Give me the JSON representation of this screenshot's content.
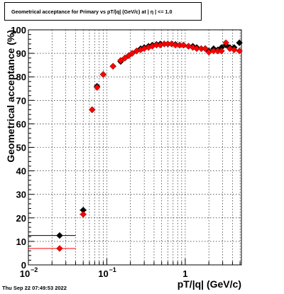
{
  "title": "Geometrical acceptance for Primary vs pT/|q| (GeV/c) at |  η | <= 1.0",
  "timestamp": "Thu Sep 22 07:49:53 2022",
  "chart_data": {
    "type": "scatter",
    "title": "Geometrical acceptance for Primary vs pT/|q| (GeV/c) at |  η | <= 1.0",
    "xlabel": "pT/|q| (GeV/c)",
    "ylabel": "Geometrical acceptance (%)",
    "xscale": "log",
    "xlim": [
      0.01,
      5.2
    ],
    "ylim": [
      0,
      100
    ],
    "grid": true,
    "x_ticks": [
      {
        "value": 0.01,
        "base": "10",
        "exp": "−2"
      },
      {
        "value": 0.1,
        "base": "10",
        "exp": "−1"
      },
      {
        "value": 1,
        "base": "1",
        "exp": ""
      }
    ],
    "y_ticks": [
      0,
      10,
      20,
      30,
      40,
      50,
      60,
      70,
      80,
      90,
      100
    ],
    "series": [
      {
        "marker": "diamond",
        "color": "#000000",
        "points": [
          {
            "x": 0.025,
            "y": 12.5,
            "xlo": 0.01,
            "xhi": 0.04
          },
          {
            "x": 0.05,
            "y": 23.3,
            "xlo": 0.045,
            "xhi": 0.055
          },
          {
            "x": 0.065,
            "y": 66,
            "xlo": 0.062,
            "xhi": 0.068
          },
          {
            "x": 0.075,
            "y": 76,
            "xlo": 0.072,
            "xhi": 0.078
          },
          {
            "x": 0.09,
            "y": 81,
            "xlo": 0.085,
            "xhi": 0.095
          },
          {
            "x": 0.12,
            "y": 84.5,
            "xlo": 0.115,
            "xhi": 0.125
          },
          {
            "x": 0.15,
            "y": 86.5
          },
          {
            "x": 0.17,
            "y": 88
          },
          {
            "x": 0.19,
            "y": 89
          },
          {
            "x": 0.21,
            "y": 90
          },
          {
            "x": 0.24,
            "y": 91
          },
          {
            "x": 0.27,
            "y": 92
          },
          {
            "x": 0.3,
            "y": 92.5
          },
          {
            "x": 0.34,
            "y": 93
          },
          {
            "x": 0.38,
            "y": 93.5
          },
          {
            "x": 0.43,
            "y": 93.8
          },
          {
            "x": 0.48,
            "y": 94
          },
          {
            "x": 0.54,
            "y": 94
          },
          {
            "x": 0.6,
            "y": 94
          },
          {
            "x": 0.67,
            "y": 94
          },
          {
            "x": 0.75,
            "y": 93.8
          },
          {
            "x": 0.85,
            "y": 93.5
          },
          {
            "x": 0.95,
            "y": 93.5
          },
          {
            "x": 1.1,
            "y": 93
          },
          {
            "x": 1.25,
            "y": 93
          },
          {
            "x": 1.4,
            "y": 92.5
          },
          {
            "x": 1.6,
            "y": 92
          },
          {
            "x": 1.8,
            "y": 92
          },
          {
            "x": 2.0,
            "y": 91
          },
          {
            "x": 2.3,
            "y": 92
          },
          {
            "x": 2.6,
            "y": 91.5
          },
          {
            "x": 2.9,
            "y": 92.5
          },
          {
            "x": 3.3,
            "y": 93.5
          },
          {
            "x": 3.7,
            "y": 92.5
          },
          {
            "x": 4.2,
            "y": 92.5
          },
          {
            "x": 4.9,
            "y": 94.5
          }
        ]
      },
      {
        "marker": "diamond",
        "color": "#ff0000",
        "points": [
          {
            "x": 0.025,
            "y": 7,
            "xlo": 0.01,
            "xhi": 0.04
          },
          {
            "x": 0.05,
            "y": 21.5,
            "xlo": 0.045,
            "xhi": 0.055
          },
          {
            "x": 0.065,
            "y": 66,
            "xlo": 0.062,
            "xhi": 0.068
          },
          {
            "x": 0.075,
            "y": 75.5,
            "xlo": 0.072,
            "xhi": 0.078
          },
          {
            "x": 0.09,
            "y": 81,
            "xlo": 0.085,
            "xhi": 0.095
          },
          {
            "x": 0.12,
            "y": 84.5,
            "xlo": 0.115,
            "xhi": 0.125
          },
          {
            "x": 0.15,
            "y": 87
          },
          {
            "x": 0.17,
            "y": 88
          },
          {
            "x": 0.19,
            "y": 89
          },
          {
            "x": 0.21,
            "y": 90
          },
          {
            "x": 0.24,
            "y": 91
          },
          {
            "x": 0.27,
            "y": 91.5
          },
          {
            "x": 0.3,
            "y": 92
          },
          {
            "x": 0.34,
            "y": 92.5
          },
          {
            "x": 0.38,
            "y": 93
          },
          {
            "x": 0.43,
            "y": 93.5
          },
          {
            "x": 0.48,
            "y": 93.5
          },
          {
            "x": 0.54,
            "y": 94
          },
          {
            "x": 0.6,
            "y": 94
          },
          {
            "x": 0.67,
            "y": 94
          },
          {
            "x": 0.75,
            "y": 93.5
          },
          {
            "x": 0.85,
            "y": 93.5
          },
          {
            "x": 0.95,
            "y": 93.5
          },
          {
            "x": 1.1,
            "y": 93
          },
          {
            "x": 1.25,
            "y": 92.5
          },
          {
            "x": 1.4,
            "y": 92
          },
          {
            "x": 1.6,
            "y": 92
          },
          {
            "x": 1.8,
            "y": 92
          },
          {
            "x": 2.0,
            "y": 90.5
          },
          {
            "x": 2.3,
            "y": 91
          },
          {
            "x": 2.6,
            "y": 91
          },
          {
            "x": 2.9,
            "y": 91
          },
          {
            "x": 3.3,
            "y": 94.5
          },
          {
            "x": 3.7,
            "y": 92
          },
          {
            "x": 4.2,
            "y": 91.5
          },
          {
            "x": 4.9,
            "y": 91
          }
        ]
      }
    ]
  }
}
